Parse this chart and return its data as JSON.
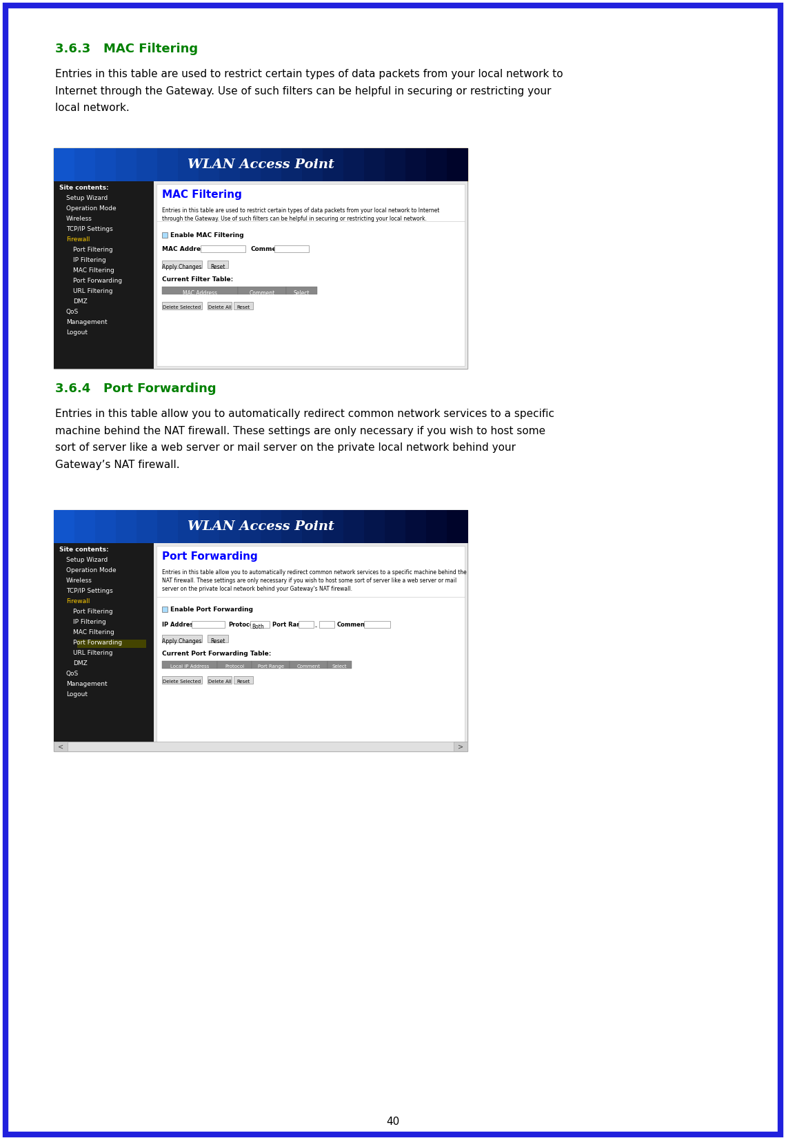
{
  "page_bg": "#ffffff",
  "border_color": "#2020dd",
  "border_width": 8,
  "page_number": "40",
  "section1_heading": "3.6.3   MAC Filtering",
  "section1_heading_color": "#008000",
  "section1_body": "Entries in this table are used to restrict certain types of data packets from your local network to\nInternet through the Gateway. Use of such filters can be helpful in securing or restricting your\nlocal network.",
  "section2_heading": "3.6.4   Port Forwarding",
  "section2_heading_color": "#008000",
  "section2_body": "Entries in this table allow you to automatically redirect common network services to a specific\nmachine behind the NAT firewall. These settings are only necessary if you wish to host some\nsort of server like a web server or mail server on the private local network behind your\nGateway’s NAT firewall.",
  "wlan_header_text": "WLAN Access Point",
  "wlan_header_bg_start": "#000033",
  "wlan_header_bg_end": "#1144bb",
  "wlan_header_text_color": "#ffffff",
  "sidebar_bg": "#1a1a1a",
  "sidebar_text_color": "#ffffff",
  "sidebar_highlight_color": "#ffcc00",
  "content_bg": "#f0f0f0",
  "mac_title": "MAC Filtering",
  "mac_title_color": "#0000ff",
  "port_title": "Port Forwarding",
  "port_title_color": "#0000ff",
  "table_header_bg": "#888888",
  "table_header_color": "#ffffff",
  "button_bg": "#dddddd",
  "button_border": "#888888",
  "checkbox_color": "#aaddff",
  "link_color": "#3333ff",
  "body_font_size": 11,
  "heading_font_size": 13,
  "wlan_font_size": 16
}
